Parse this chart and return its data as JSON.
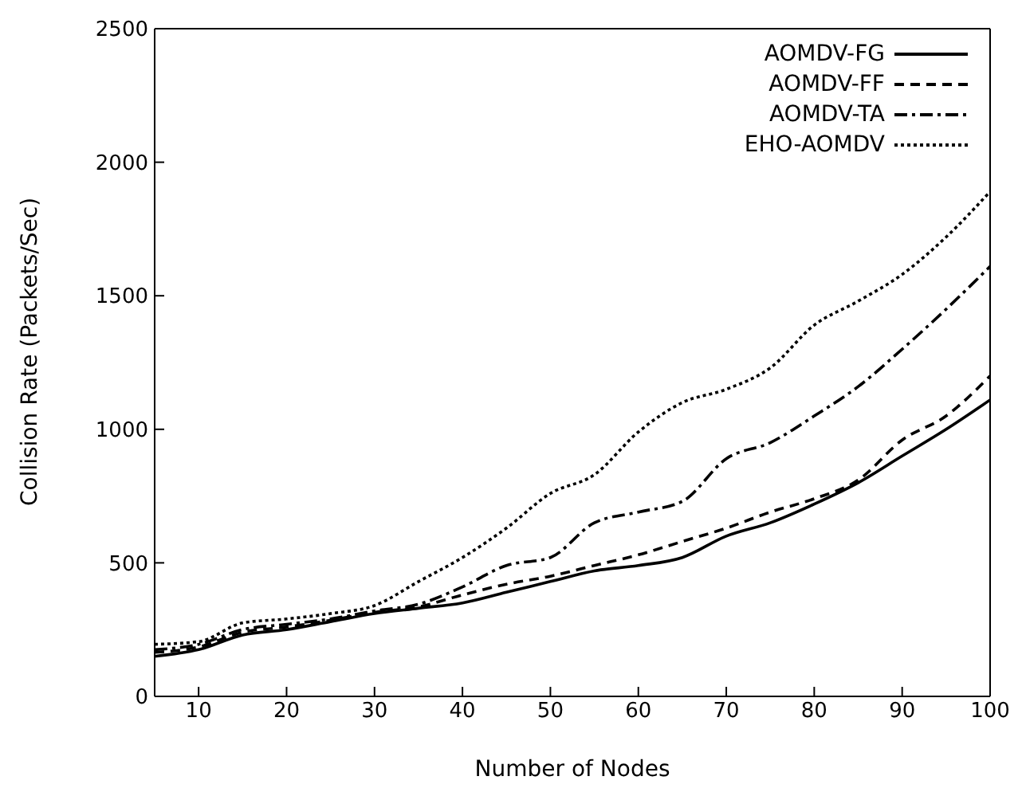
{
  "chart_data": {
    "type": "line",
    "xlabel": "Number of Nodes",
    "ylabel": "Collision Rate (Packets/Sec)",
    "x": [
      5,
      10,
      15,
      20,
      25,
      30,
      35,
      40,
      45,
      50,
      55,
      60,
      65,
      70,
      75,
      80,
      85,
      90,
      95,
      100
    ],
    "xlim": [
      5,
      100
    ],
    "xticks": [
      10,
      20,
      30,
      40,
      50,
      60,
      70,
      80,
      90,
      100
    ],
    "ylim": [
      0,
      2500
    ],
    "yticks": [
      0,
      500,
      1000,
      1500,
      2000,
      2500
    ],
    "legend": "top right",
    "marker": "none",
    "series": [
      {
        "name": "AOMDV-FG",
        "color": "#000000",
        "line_style": "solid",
        "values": [
          150,
          175,
          230,
          250,
          280,
          310,
          330,
          350,
          390,
          430,
          470,
          490,
          520,
          600,
          650,
          720,
          800,
          900,
          1000,
          1110
        ]
      },
      {
        "name": "AOMDV-FF",
        "color": "#000000",
        "line_style": "dashed",
        "values": [
          165,
          185,
          240,
          260,
          285,
          315,
          335,
          380,
          420,
          450,
          490,
          530,
          580,
          630,
          690,
          740,
          810,
          960,
          1050,
          1200
        ]
      },
      {
        "name": "AOMDV-TA",
        "color": "#000000",
        "line_style": "dashdot",
        "values": [
          175,
          195,
          250,
          270,
          290,
          320,
          345,
          410,
          490,
          520,
          650,
          690,
          730,
          890,
          950,
          1050,
          1160,
          1300,
          1450,
          1610
        ]
      },
      {
        "name": "EHO-AOMDV",
        "color": "#000000",
        "line_style": "dotted",
        "values": [
          195,
          205,
          275,
          290,
          310,
          340,
          430,
          520,
          630,
          760,
          830,
          990,
          1100,
          1150,
          1230,
          1390,
          1480,
          1580,
          1720,
          1890
        ]
      }
    ]
  }
}
